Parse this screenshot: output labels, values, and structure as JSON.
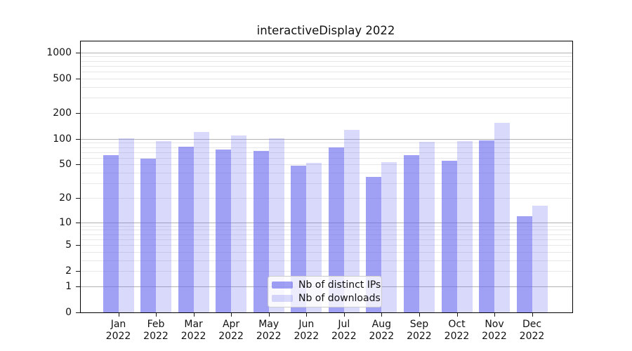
{
  "chart_data": {
    "type": "bar",
    "title": "interactiveDisplay 2022",
    "categories": [
      "Jan",
      "Feb",
      "Mar",
      "Apr",
      "May",
      "Jun",
      "Jul",
      "Aug",
      "Sep",
      "Oct",
      "Nov",
      "Dec"
    ],
    "year_label": "2022",
    "series": [
      {
        "name": "Nb of distinct IPs",
        "color": "rgba(102,102,238,0.62)",
        "values": [
          65,
          59,
          81,
          75,
          72,
          48,
          79,
          36,
          65,
          55,
          96,
          12
        ]
      },
      {
        "name": "Nb of downloads",
        "color": "rgba(102,102,238,0.25)",
        "values": [
          102,
          94,
          121,
          110,
          101,
          52,
          127,
          53,
          92,
          94,
          152,
          16
        ]
      }
    ],
    "y_axis": {
      "scale": "log10(1+value)",
      "ticks": [
        0,
        1,
        2,
        5,
        10,
        20,
        50,
        100,
        200,
        500,
        1000
      ],
      "major_gridlines": [
        1,
        10,
        100,
        1000
      ],
      "ylim": [
        0,
        1000
      ]
    },
    "x_axis": {
      "tick_label_lines": 2
    },
    "legend": {
      "position": "bottom-center",
      "entries": [
        "Nb of distinct IPs",
        "Nb of downloads"
      ]
    },
    "grid": true,
    "colors": {
      "bar_base": "#6666ee",
      "major_grid": "#b3b3b3",
      "minor_grid": "#e7e7e7",
      "frame": "#000000",
      "text": "#111111"
    }
  }
}
